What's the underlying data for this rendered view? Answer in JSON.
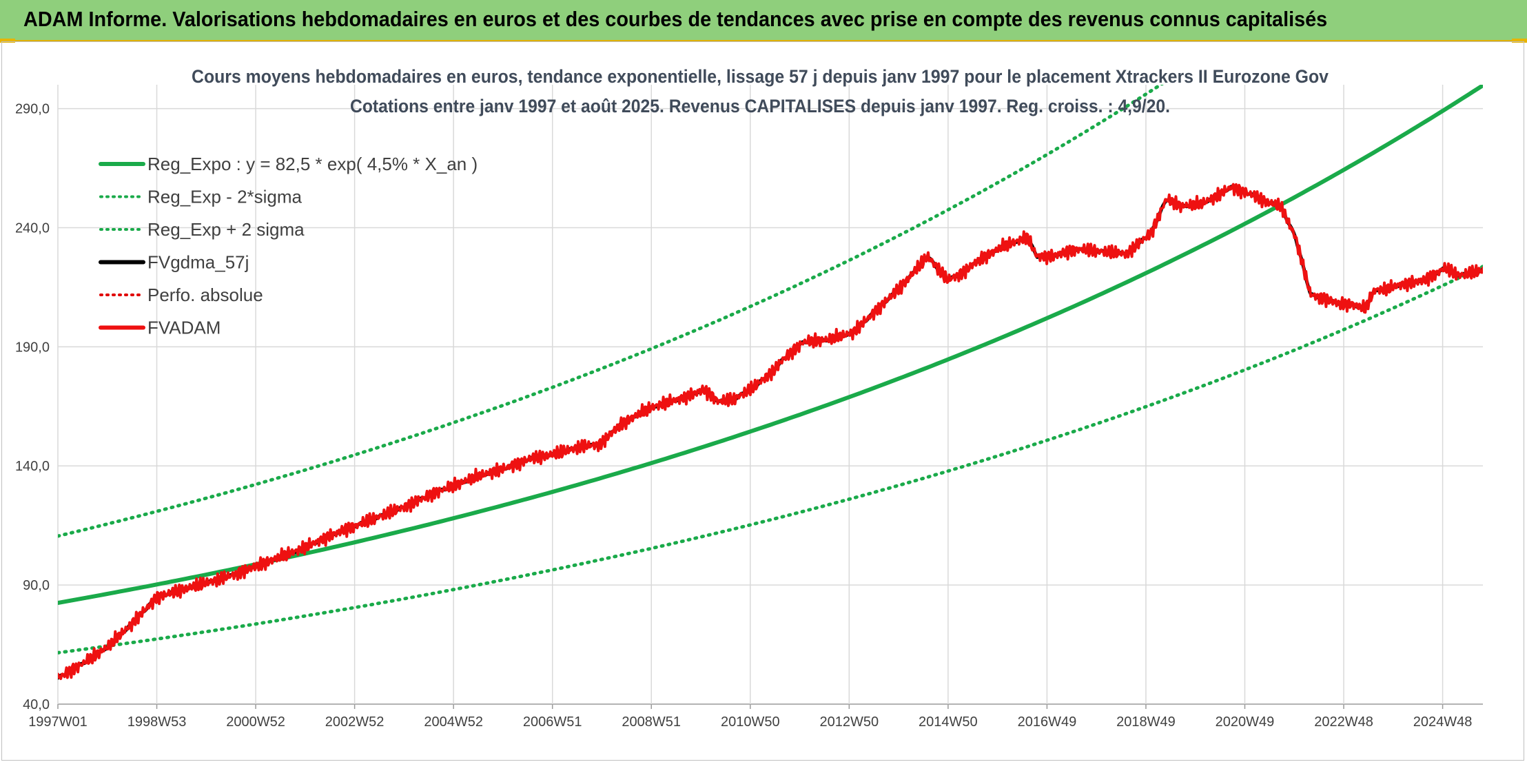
{
  "banner": {
    "title": "ADAM Informe. Valorisations hebdomadaires en euros et des courbes de tendances avec prise en compte des revenus connus capitalisés"
  },
  "chart_data": {
    "type": "line",
    "title_line1": "Cours moyens hebdomadaires en euros, tendance exponentielle, lissage 57 j depuis janv 1997 pour le placement Xtrackers II Eurozone Gov",
    "title_line2": "Cotations entre janv 1997 et août 2025. Revenus CAPITALISES depuis janv 1997. Reg. croiss. : 4,9/20.",
    "xlabel": "",
    "ylabel": "",
    "x_range": [
      1997.0,
      2025.67
    ],
    "ylim": [
      40,
      300
    ],
    "y_ticks": [
      40,
      90,
      140,
      190,
      240,
      290
    ],
    "y_tick_labels": [
      "40,0",
      "90,0",
      "140,0",
      "190,0",
      "240,0",
      "290,0"
    ],
    "x_tick_labels": [
      "1997W01",
      "1998W53",
      "2000W52",
      "2002W52",
      "2004W52",
      "2006W51",
      "2008W51",
      "2010W50",
      "2012W50",
      "2014W50",
      "2016W49",
      "2018W49",
      "2020W49",
      "2022W48",
      "2024W48"
    ],
    "grid": true,
    "legend_position": "top-left",
    "regression": {
      "a": 82.5,
      "rate": 0.045,
      "sigma2_factor": 1.34
    },
    "series": [
      {
        "name": "Reg_Expo : y = 82,5 * exp( 4,5% *  X_an )",
        "color": "#1aaa4a",
        "style": "solid",
        "kind": "reg"
      },
      {
        "name": "Reg_Exp - 2*sigma",
        "color": "#1aaa4a",
        "style": "dotted",
        "kind": "reg_minus"
      },
      {
        "name": "Reg_Exp + 2 sigma",
        "color": "#1aaa4a",
        "style": "dotted",
        "kind": "reg_plus"
      },
      {
        "name": "FVgdma_57j",
        "color": "#000000",
        "style": "solid",
        "kind": "smooth"
      },
      {
        "name": "Perfo. absolue",
        "color": "#e00000",
        "style": "dotted",
        "kind": "none"
      },
      {
        "name": "FVADAM",
        "color": "#ee1111",
        "style": "solid",
        "kind": "price"
      }
    ],
    "price_points": {
      "x": [
        1997.0,
        1997.5,
        1998.0,
        1998.5,
        1999.0,
        1999.5,
        2000.0,
        2000.5,
        2001.0,
        2001.5,
        2002.0,
        2002.5,
        2003.0,
        2003.5,
        2004.0,
        2004.5,
        2005.0,
        2005.5,
        2006.0,
        2006.5,
        2007.0,
        2007.5,
        2007.9,
        2008.3,
        2008.7,
        2009.0,
        2009.5,
        2010.0,
        2010.3,
        2010.6,
        2011.0,
        2011.4,
        2011.6,
        2012.0,
        2012.5,
        2013.0,
        2013.5,
        2014.0,
        2014.5,
        2014.9,
        2015.2,
        2015.5,
        2016.0,
        2016.5,
        2016.7,
        2017.0,
        2017.5,
        2018.0,
        2018.5,
        2019.0,
        2019.3,
        2019.6,
        2020.0,
        2020.3,
        2020.6,
        2021.0,
        2021.3,
        2021.6,
        2021.9,
        2022.2,
        2022.5,
        2022.8,
        2023.0,
        2023.3,
        2023.5,
        2023.7,
        2024.0,
        2024.5,
        2024.9,
        2025.2,
        2025.67
      ],
      "y": [
        51,
        57,
        64,
        74,
        85,
        88,
        91,
        94,
        98,
        102,
        106,
        111,
        115,
        119,
        123,
        128,
        132,
        136,
        139,
        143,
        145,
        148,
        149,
        157,
        162,
        165,
        168,
        172,
        167,
        168,
        173,
        180,
        185,
        192,
        193,
        196,
        206,
        216,
        228,
        218,
        221,
        226,
        232,
        236,
        228,
        228,
        231,
        230,
        229,
        238,
        252,
        249,
        250,
        253,
        257,
        254,
        251,
        249,
        236,
        212,
        210,
        208,
        208,
        206,
        214,
        214,
        216,
        218,
        223,
        220,
        222
      ]
    }
  }
}
